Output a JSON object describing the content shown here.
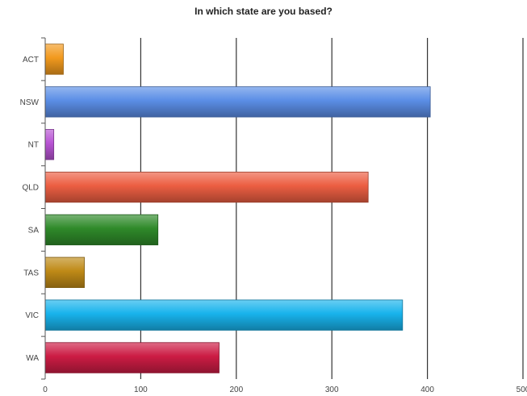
{
  "chart_data": {
    "type": "bar",
    "orientation": "horizontal",
    "title": "In which state are you based?",
    "xlabel": "",
    "ylabel": "",
    "categories": [
      "ACT",
      "NSW",
      "NT",
      "QLD",
      "SA",
      "TAS",
      "VIC",
      "WA"
    ],
    "values": [
      19,
      403,
      9,
      338,
      118,
      41,
      374,
      182
    ],
    "colors": [
      "#f29a1e",
      "#5b8ee6",
      "#b854d4",
      "#ec5e42",
      "#2f8a2a",
      "#bf8a17",
      "#18b3ec",
      "#cc1c44"
    ],
    "xlim": [
      0,
      500
    ],
    "xticks": [
      "0",
      "100",
      "200",
      "300",
      "400",
      "500"
    ],
    "grid": true,
    "legend": "none"
  }
}
